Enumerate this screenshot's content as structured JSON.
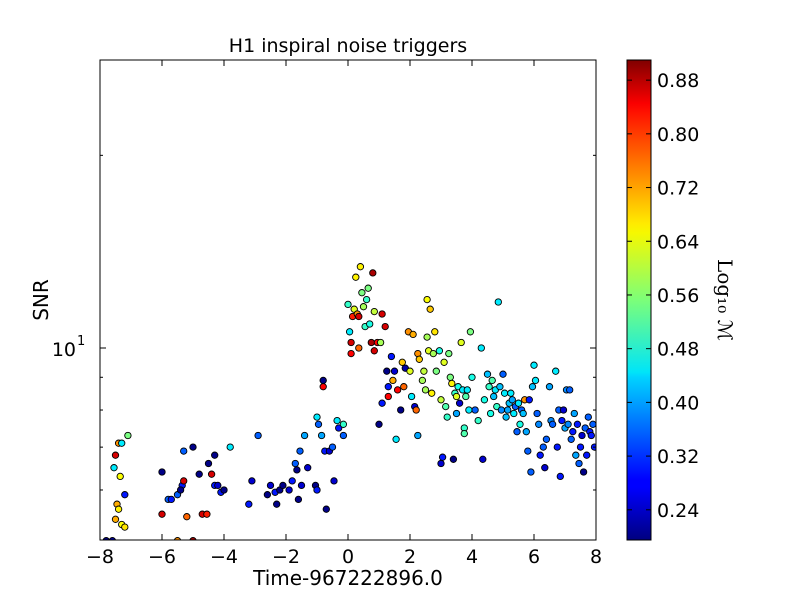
{
  "chart_data": {
    "type": "scatter",
    "title": "H1 inspiral noise triggers",
    "xlabel": "Time-967222896.0",
    "ylabel": "SNR",
    "xlim": [
      -8,
      8
    ],
    "ylim_log10": [
      0.7,
      1.45
    ],
    "yscale": "log",
    "x_ticks": [
      -8,
      -6,
      -4,
      -2,
      0,
      2,
      4,
      6,
      8
    ],
    "x_tick_labels": [
      "−8",
      "−6",
      "−4",
      "−2",
      "0",
      "2",
      "4",
      "6",
      "8"
    ],
    "y_major_tick": {
      "value": 10,
      "label_base": "10",
      "label_exp": "1"
    },
    "grid": false,
    "colorbar": {
      "label": "Log₁₀ ℳ",
      "colormap": "jet",
      "range": [
        0.195,
        0.91
      ],
      "ticks": [
        0.24,
        0.32,
        0.4,
        0.48,
        0.56,
        0.64,
        0.72,
        0.8,
        0.88
      ],
      "tick_labels": [
        "0.24",
        "0.32",
        "0.40",
        "0.48",
        "0.56",
        "0.64",
        "0.72",
        "0.80",
        "0.88"
      ]
    },
    "points": [
      [
        -7.8,
        5.0,
        0.2
      ],
      [
        -7.6,
        5.0,
        0.22
      ],
      [
        -7.5,
        5.4,
        0.7
      ],
      [
        -7.45,
        5.7,
        0.7
      ],
      [
        -7.4,
        5.6,
        0.65
      ],
      [
        -7.35,
        6.3,
        0.64
      ],
      [
        -7.3,
        5.3,
        0.64
      ],
      [
        -7.2,
        5.25,
        0.66
      ],
      [
        -7.55,
        6.5,
        0.45
      ],
      [
        -7.5,
        6.8,
        0.85
      ],
      [
        -7.4,
        7.1,
        0.72
      ],
      [
        -7.3,
        7.1,
        0.45
      ],
      [
        -7.1,
        7.3,
        0.55
      ],
      [
        -7.2,
        5.9,
        0.3
      ],
      [
        -6.0,
        6.4,
        0.2
      ],
      [
        -6.0,
        5.5,
        0.85
      ],
      [
        -5.8,
        5.8,
        0.35
      ],
      [
        -5.7,
        5.8,
        0.3
      ],
      [
        -5.5,
        5.0,
        0.72
      ],
      [
        -5.5,
        5.9,
        0.35
      ],
      [
        -5.3,
        6.9,
        0.35
      ],
      [
        -5.35,
        6.1,
        0.3
      ],
      [
        -5.3,
        6.2,
        0.85
      ],
      [
        -5.4,
        6.0,
        0.2
      ],
      [
        -5.2,
        5.45,
        0.75
      ],
      [
        -5.0,
        5.0,
        0.88
      ],
      [
        -5.0,
        7.0,
        0.2
      ],
      [
        -4.8,
        6.35,
        0.2
      ],
      [
        -4.7,
        5.5,
        0.85
      ],
      [
        -4.55,
        5.5,
        0.8
      ],
      [
        -4.5,
        6.6,
        0.2
      ],
      [
        -4.4,
        6.35,
        0.85
      ],
      [
        -4.3,
        6.8,
        0.2
      ],
      [
        -4.3,
        6.1,
        0.3
      ],
      [
        -4.2,
        6.1,
        0.25
      ],
      [
        -4.1,
        5.95,
        0.3
      ],
      [
        -4.0,
        6.0,
        0.2
      ],
      [
        -3.8,
        7.0,
        0.45
      ],
      [
        -3.2,
        5.7,
        0.3
      ],
      [
        -3.1,
        6.2,
        0.25
      ],
      [
        -2.9,
        7.3,
        0.35
      ],
      [
        -2.6,
        5.9,
        0.2
      ],
      [
        -2.5,
        6.1,
        0.25
      ],
      [
        -2.35,
        5.95,
        0.3
      ],
      [
        -2.3,
        5.7,
        0.2
      ],
      [
        -2.2,
        6.0,
        0.2
      ],
      [
        -2.1,
        6.1,
        0.2
      ],
      [
        -1.9,
        6.0,
        0.25
      ],
      [
        -1.8,
        6.2,
        0.3
      ],
      [
        -1.7,
        6.6,
        0.35
      ],
      [
        -1.65,
        6.45,
        0.2
      ],
      [
        -1.6,
        5.8,
        0.2
      ],
      [
        -1.5,
        6.1,
        0.25
      ],
      [
        -1.55,
        6.9,
        0.35
      ],
      [
        -1.4,
        7.3,
        0.4
      ],
      [
        -1.3,
        6.5,
        0.25
      ],
      [
        -1.05,
        6.1,
        0.2
      ],
      [
        -1.0,
        6.0,
        0.3
      ],
      [
        -1.0,
        7.8,
        0.45
      ],
      [
        -0.95,
        7.6,
        0.35
      ],
      [
        -0.85,
        7.3,
        0.4
      ],
      [
        -0.8,
        8.7,
        0.82
      ],
      [
        -0.8,
        8.9,
        0.2
      ],
      [
        -0.75,
        6.9,
        0.3
      ],
      [
        -0.7,
        5.6,
        0.2
      ],
      [
        -0.6,
        6.9,
        0.25
      ],
      [
        -0.5,
        7.0,
        0.35
      ],
      [
        -0.45,
        6.2,
        0.25
      ],
      [
        -0.35,
        7.7,
        0.45
      ],
      [
        -0.3,
        7.5,
        0.3
      ],
      [
        -0.15,
        7.3,
        0.35
      ],
      [
        -0.15,
        7.6,
        0.5
      ],
      [
        0.0,
        11.7,
        0.5
      ],
      [
        0.05,
        10.6,
        0.45
      ],
      [
        0.1,
        10.2,
        0.85
      ],
      [
        0.1,
        9.8,
        0.82
      ],
      [
        0.15,
        11.2,
        0.8
      ],
      [
        0.2,
        11.5,
        0.62
      ],
      [
        0.25,
        12.9,
        0.65
      ],
      [
        0.3,
        11.3,
        0.72
      ],
      [
        0.35,
        10.0,
        0.75
      ],
      [
        0.35,
        11.2,
        0.85
      ],
      [
        0.4,
        13.4,
        0.65
      ],
      [
        0.45,
        12.2,
        0.55
      ],
      [
        0.5,
        11.6,
        0.58
      ],
      [
        0.55,
        10.8,
        0.5
      ],
      [
        0.6,
        11.9,
        0.5
      ],
      [
        0.65,
        12.4,
        0.55
      ],
      [
        0.7,
        10.9,
        0.48
      ],
      [
        0.75,
        10.2,
        0.88
      ],
      [
        0.8,
        13.1,
        0.88
      ],
      [
        0.85,
        11.4,
        0.6
      ],
      [
        0.85,
        9.9,
        0.85
      ],
      [
        0.95,
        10.2,
        0.82
      ],
      [
        1.0,
        7.6,
        0.2
      ],
      [
        1.05,
        10.2,
        0.58
      ],
      [
        1.1,
        8.2,
        0.3
      ],
      [
        1.1,
        11.3,
        0.85
      ],
      [
        1.2,
        10.8,
        0.85
      ],
      [
        1.25,
        9.2,
        0.2
      ],
      [
        1.3,
        8.7,
        0.3
      ],
      [
        1.3,
        8.4,
        0.82
      ],
      [
        1.4,
        9.7,
        0.3
      ],
      [
        1.45,
        8.9,
        0.7
      ],
      [
        1.5,
        9.2,
        0.25
      ],
      [
        1.55,
        7.2,
        0.45
      ],
      [
        1.6,
        8.6,
        0.82
      ],
      [
        1.7,
        8.0,
        0.2
      ],
      [
        1.75,
        9.5,
        0.68
      ],
      [
        1.8,
        8.7,
        0.75
      ],
      [
        1.85,
        9.3,
        0.22
      ],
      [
        1.95,
        10.6,
        0.72
      ],
      [
        2.0,
        9.2,
        0.62
      ],
      [
        2.05,
        8.4,
        0.45
      ],
      [
        2.1,
        10.5,
        0.7
      ],
      [
        2.15,
        8.1,
        0.25
      ],
      [
        2.2,
        8.0,
        0.75
      ],
      [
        2.25,
        9.8,
        0.72
      ],
      [
        2.25,
        7.3,
        0.4
      ],
      [
        2.3,
        9.6,
        0.68
      ],
      [
        2.4,
        8.9,
        0.58
      ],
      [
        2.45,
        9.2,
        0.6
      ],
      [
        2.5,
        8.6,
        0.58
      ],
      [
        2.55,
        10.4,
        0.58
      ],
      [
        2.55,
        11.9,
        0.64
      ],
      [
        2.6,
        9.9,
        0.62
      ],
      [
        2.65,
        11.5,
        0.68
      ],
      [
        2.7,
        8.5,
        0.65
      ],
      [
        2.75,
        9.8,
        0.58
      ],
      [
        2.8,
        10.6,
        0.66
      ],
      [
        2.85,
        9.2,
        0.55
      ],
      [
        2.95,
        9.9,
        0.48
      ],
      [
        3.0,
        8.3,
        0.6
      ],
      [
        3.0,
        6.6,
        0.25
      ],
      [
        3.05,
        6.75,
        0.3
      ],
      [
        3.1,
        9.5,
        0.62
      ],
      [
        3.15,
        8.1,
        0.52
      ],
      [
        3.2,
        7.8,
        0.5
      ],
      [
        3.25,
        9.8,
        0.55
      ],
      [
        3.3,
        9.0,
        0.55
      ],
      [
        3.35,
        8.8,
        0.65
      ],
      [
        3.4,
        6.7,
        0.2
      ],
      [
        3.45,
        8.5,
        0.5
      ],
      [
        3.5,
        8.4,
        0.62
      ],
      [
        3.5,
        7.9,
        0.4
      ],
      [
        3.55,
        8.7,
        0.48
      ],
      [
        3.6,
        8.2,
        0.25
      ],
      [
        3.65,
        10.2,
        0.62
      ],
      [
        3.7,
        8.6,
        0.45
      ],
      [
        3.75,
        7.5,
        0.5
      ],
      [
        3.75,
        7.35,
        0.52
      ],
      [
        3.8,
        8.4,
        0.52
      ],
      [
        3.85,
        8.6,
        0.45
      ],
      [
        3.9,
        8.0,
        0.45
      ],
      [
        3.95,
        10.6,
        0.55
      ],
      [
        4.0,
        9.0,
        0.48
      ],
      [
        4.1,
        8.0,
        0.35
      ],
      [
        4.2,
        7.7,
        0.5
      ],
      [
        4.3,
        10.0,
        0.45
      ],
      [
        4.35,
        6.7,
        0.25
      ],
      [
        4.4,
        8.3,
        0.48
      ],
      [
        4.5,
        9.1,
        0.42
      ],
      [
        4.55,
        8.7,
        0.5
      ],
      [
        4.6,
        7.9,
        0.48
      ],
      [
        4.65,
        8.9,
        0.52
      ],
      [
        4.7,
        8.4,
        0.42
      ],
      [
        4.75,
        8.6,
        0.45
      ],
      [
        4.8,
        8.1,
        0.5
      ],
      [
        4.85,
        11.8,
        0.45
      ],
      [
        4.9,
        8.7,
        0.42
      ],
      [
        4.95,
        8.0,
        0.38
      ],
      [
        5.0,
        9.1,
        0.35
      ],
      [
        5.05,
        8.5,
        0.45
      ],
      [
        5.1,
        7.8,
        0.42
      ],
      [
        5.15,
        8.0,
        0.4
      ],
      [
        5.2,
        8.2,
        0.42
      ],
      [
        5.25,
        8.5,
        0.45
      ],
      [
        5.3,
        8.3,
        0.4
      ],
      [
        5.35,
        7.9,
        0.45
      ],
      [
        5.4,
        8.1,
        0.35
      ],
      [
        5.45,
        7.4,
        0.35
      ],
      [
        5.5,
        8.2,
        0.45
      ],
      [
        5.55,
        7.6,
        0.48
      ],
      [
        5.6,
        8.0,
        0.35
      ],
      [
        5.65,
        7.9,
        0.42
      ],
      [
        5.7,
        8.3,
        0.72
      ],
      [
        5.75,
        7.4,
        0.4
      ],
      [
        5.8,
        6.9,
        0.35
      ],
      [
        5.85,
        8.3,
        0.3
      ],
      [
        5.9,
        6.4,
        0.35
      ],
      [
        5.95,
        8.7,
        0.42
      ],
      [
        6.0,
        9.4,
        0.45
      ],
      [
        6.05,
        8.9,
        0.45
      ],
      [
        6.1,
        7.9,
        0.35
      ],
      [
        6.15,
        7.6,
        0.38
      ],
      [
        6.2,
        6.8,
        0.3
      ],
      [
        6.3,
        7.0,
        0.35
      ],
      [
        6.35,
        6.5,
        0.25
      ],
      [
        6.4,
        7.2,
        0.35
      ],
      [
        6.5,
        8.7,
        0.4
      ],
      [
        6.55,
        7.7,
        0.38
      ],
      [
        6.6,
        7.6,
        0.35
      ],
      [
        6.7,
        9.2,
        0.45
      ],
      [
        6.75,
        7.0,
        0.3
      ],
      [
        6.8,
        8.0,
        0.35
      ],
      [
        6.85,
        6.3,
        0.3
      ],
      [
        6.9,
        7.7,
        0.3
      ],
      [
        6.95,
        8.0,
        0.25
      ],
      [
        7.0,
        7.5,
        0.4
      ],
      [
        7.05,
        8.6,
        0.38
      ],
      [
        7.1,
        7.6,
        0.38
      ],
      [
        7.15,
        8.6,
        0.35
      ],
      [
        7.2,
        7.2,
        0.35
      ],
      [
        7.25,
        7.4,
        0.3
      ],
      [
        7.3,
        7.9,
        0.4
      ],
      [
        7.35,
        6.8,
        0.4
      ],
      [
        7.4,
        7.6,
        0.3
      ],
      [
        7.45,
        6.6,
        0.35
      ],
      [
        7.5,
        7.0,
        0.3
      ],
      [
        7.55,
        7.3,
        0.25
      ],
      [
        7.6,
        6.4,
        0.2
      ],
      [
        7.65,
        7.5,
        0.35
      ],
      [
        7.7,
        6.8,
        0.3
      ],
      [
        7.75,
        7.8,
        0.35
      ],
      [
        7.8,
        7.4,
        0.3
      ],
      [
        7.85,
        7.3,
        0.3
      ],
      [
        7.9,
        7.6,
        0.35
      ],
      [
        7.95,
        7.0,
        0.3
      ]
    ]
  }
}
